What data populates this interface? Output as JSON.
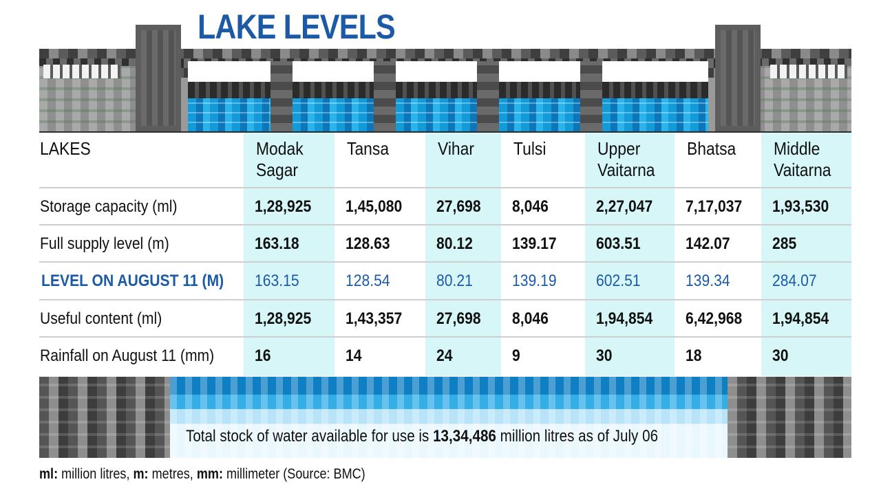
{
  "title": "LAKE LEVELS",
  "chart_data": {
    "type": "table",
    "columns": [
      "LAKES",
      "Modak Sagar",
      "Tansa",
      "Vihar",
      "Tulsi",
      "Upper Vaitarna",
      "Bhatsa",
      "Middle Vaitarna"
    ],
    "column_lines": [
      [
        "LAKES"
      ],
      [
        "Modak",
        "Sagar"
      ],
      [
        "Tansa"
      ],
      [
        "Vihar"
      ],
      [
        "Tulsi"
      ],
      [
        "Upper",
        "Vaitarna"
      ],
      [
        "Bhatsa"
      ],
      [
        "Middle",
        "Vaitarna"
      ]
    ],
    "rows": [
      {
        "label": "Storage capacity (ml)",
        "values": [
          "1,28,925",
          "1,45,080",
          "27,698",
          "8,046",
          "2,27,047",
          "7,17,037",
          "1,93,530"
        ]
      },
      {
        "label": "Full supply level (m)",
        "values": [
          "163.18",
          "128.63",
          "80.12",
          "139.17",
          "603.51",
          "142.07",
          "285"
        ]
      },
      {
        "label": "LEVEL ON AUGUST 11 (M)",
        "values": [
          "163.15",
          "128.54",
          "80.21",
          "139.19",
          "602.51",
          "139.34",
          "284.07"
        ],
        "highlight": true
      },
      {
        "label": "Useful content (ml)",
        "values": [
          "1,28,925",
          "1,43,357",
          "27,698",
          "8,046",
          "1,94,854",
          "6,42,968",
          "1,94,854"
        ]
      },
      {
        "label": "Rainfall on August 11 (mm)",
        "values": [
          "16",
          "14",
          "24",
          "9",
          "30",
          "18",
          "30"
        ]
      }
    ]
  },
  "stock_note": {
    "prefix": "Total stock of water available for use is",
    "amount": "13,34,486",
    "suffix": "million litres as of July 06"
  },
  "footnote": {
    "k1": "ml:",
    "v1": "million litres,",
    "k2": "m:",
    "v2": "metres,",
    "k3": "mm:",
    "v3": "millimeter (Source: BMC)"
  },
  "colors": {
    "title": "#1c5aa6",
    "band": "#d6f6f7",
    "water": "#139ad8"
  }
}
